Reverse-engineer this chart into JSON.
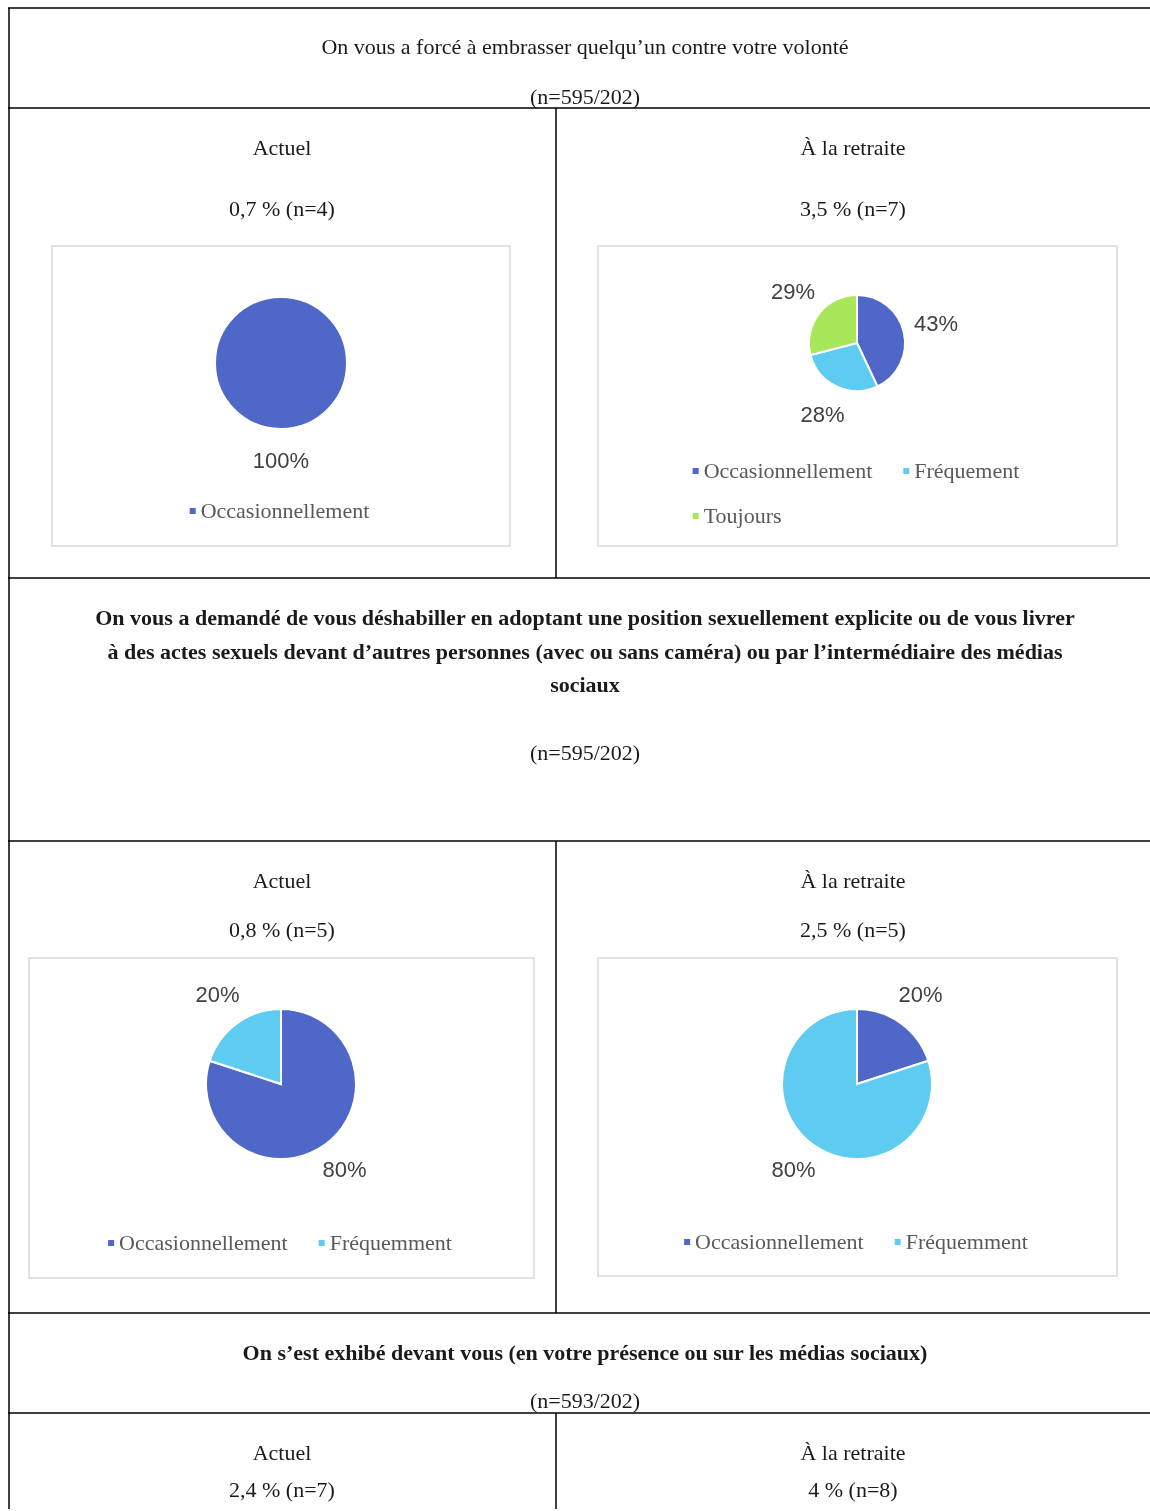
{
  "chart_data": [
    {
      "type": "other",
      "title": "On vous a forcé à embrasser quelqu’un contre votre volonté",
      "subtitle": "(n=595/202)"
    },
    {
      "type": "pie",
      "title": "Actuel",
      "subtitle": "0,7 % (n=4)",
      "categories": [
        "Occasionnellement"
      ],
      "values": [
        100
      ],
      "colors": [
        "#4f67c6"
      ],
      "value_labels": [
        "100%"
      ],
      "legend": "bottom"
    },
    {
      "type": "pie",
      "title": "À la retraite",
      "subtitle": "3,5 % (n=7)",
      "categories": [
        "Occasionnellement",
        "Fréquement",
        "Toujours"
      ],
      "values": [
        43,
        28,
        29
      ],
      "colors": [
        "#4f67c6",
        "#5ecbf0",
        "#a8e65a"
      ],
      "value_labels": [
        "43%",
        "28%",
        "29%"
      ],
      "legend": "bottom"
    },
    {
      "type": "other",
      "title": "On vous a demandé de vous déshabiller en adoptant une position sexuellement explicite ou de vous livrer à des actes sexuels devant d’autres personnes (avec ou sans caméra) ou par l’intermédiaire des médias sociaux",
      "subtitle": "(n=595/202)"
    },
    {
      "type": "pie",
      "title": "Actuel",
      "subtitle": "0,8 % (n=5)",
      "categories": [
        "Occasionnellement",
        "Fréquemment"
      ],
      "values": [
        80,
        20
      ],
      "colors": [
        "#4f67c6",
        "#5ecbf0"
      ],
      "value_labels": [
        "80%",
        "20%"
      ],
      "legend": "bottom"
    },
    {
      "type": "pie",
      "title": "À la retraite",
      "subtitle": "2,5 % (n=5)",
      "categories": [
        "Occasionnellement",
        "Fréquemment"
      ],
      "values": [
        20,
        80
      ],
      "colors": [
        "#4f67c6",
        "#5ecbf0"
      ],
      "value_labels": [
        "20%",
        "80%"
      ],
      "legend": "bottom"
    },
    {
      "type": "other",
      "title": "On s’est exhibé devant vous (en votre présence ou sur les médias sociaux)",
      "subtitle": "(n=593/202)"
    },
    {
      "type": "other",
      "title": "Actuel",
      "subtitle": "2,4 % (n=7)"
    },
    {
      "type": "other",
      "title": "À la retraite",
      "subtitle": "4 % (n=8)"
    }
  ]
}
